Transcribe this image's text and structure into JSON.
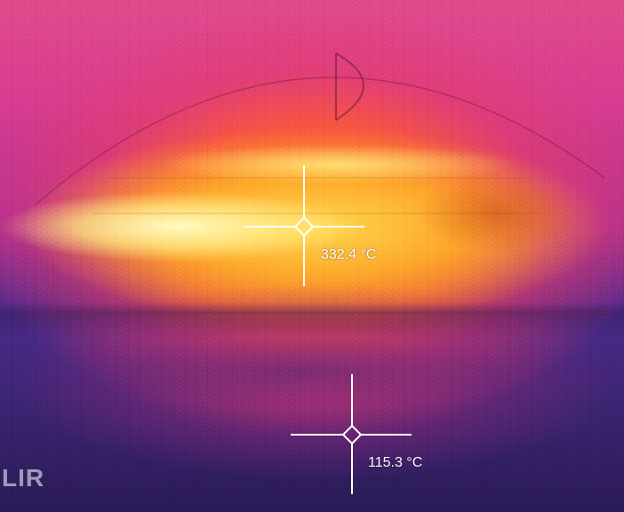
{
  "thermal_view": {
    "palette": {
      "hot": "#fff6c8",
      "warm": "#ffb428",
      "mid": "#d73c8f",
      "cool": "#3a2470"
    },
    "spot_meters": [
      {
        "label": "332.4 °C",
        "icon": "crosshair-icon"
      },
      {
        "label": "115.3 °C",
        "icon": "crosshair-icon"
      }
    ],
    "logo": "LIR"
  }
}
